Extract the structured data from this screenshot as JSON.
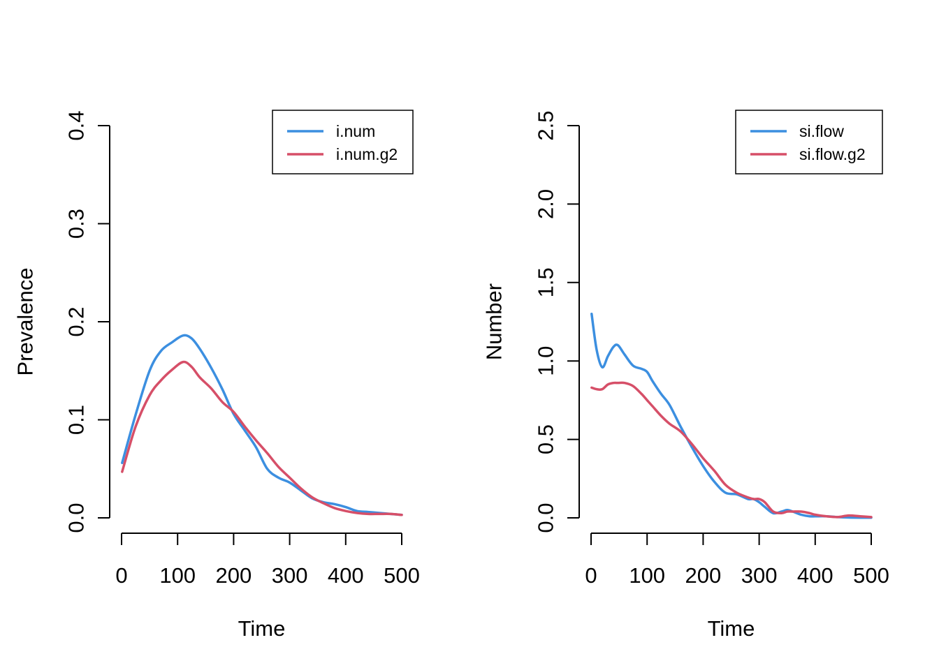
{
  "colors": {
    "blue": "#3C8FE0",
    "red": "#D64F68",
    "axis": "#000000",
    "background": "#FFFFFF"
  },
  "chart_data": [
    {
      "type": "line",
      "xlabel": "Time",
      "ylabel": "Prevalence",
      "xlim": [
        0,
        500
      ],
      "ylim": [
        0,
        0.4
      ],
      "xticks": [
        0,
        100,
        200,
        300,
        400,
        500
      ],
      "xtick_labels": [
        "0",
        "100",
        "200",
        "300",
        "400",
        "500"
      ],
      "yticks": [
        0,
        0.1,
        0.2,
        0.3,
        0.4
      ],
      "ytick_labels": [
        "0.0",
        "0.1",
        "0.2",
        "0.3",
        "0.4"
      ],
      "grid": false,
      "legend": "top-right",
      "series": [
        {
          "name": "i.num",
          "color": "#3C8FE0",
          "x": [
            1,
            25,
            50,
            70,
            90,
            110,
            125,
            140,
            160,
            180,
            200,
            220,
            240,
            260,
            280,
            300,
            320,
            340,
            360,
            380,
            400,
            420,
            440,
            460,
            480,
            500
          ],
          "y": [
            0.056,
            0.105,
            0.15,
            0.17,
            0.179,
            0.186,
            0.183,
            0.172,
            0.153,
            0.131,
            0.106,
            0.089,
            0.072,
            0.05,
            0.041,
            0.036,
            0.028,
            0.02,
            0.016,
            0.014,
            0.011,
            0.007,
            0.006,
            0.005,
            0.004,
            0.003
          ]
        },
        {
          "name": "i.num.g2",
          "color": "#D64F68",
          "x": [
            1,
            25,
            50,
            70,
            90,
            110,
            125,
            140,
            160,
            180,
            200,
            220,
            240,
            260,
            280,
            300,
            320,
            340,
            360,
            380,
            400,
            420,
            440,
            460,
            480,
            500
          ],
          "y": [
            0.047,
            0.093,
            0.125,
            0.14,
            0.151,
            0.159,
            0.154,
            0.143,
            0.132,
            0.118,
            0.108,
            0.093,
            0.079,
            0.066,
            0.052,
            0.041,
            0.03,
            0.021,
            0.015,
            0.01,
            0.007,
            0.005,
            0.004,
            0.004,
            0.004,
            0.003
          ]
        }
      ]
    },
    {
      "type": "line",
      "xlabel": "Time",
      "ylabel": "Number",
      "xlim": [
        0,
        500
      ],
      "ylim": [
        0,
        2.5
      ],
      "xticks": [
        0,
        100,
        200,
        300,
        400,
        500
      ],
      "xtick_labels": [
        "0",
        "100",
        "200",
        "300",
        "400",
        "500"
      ],
      "yticks": [
        0,
        0.5,
        1.0,
        1.5,
        2.0,
        2.5
      ],
      "ytick_labels": [
        "0.0",
        "0.5",
        "1.0",
        "1.5",
        "2.0",
        "2.5"
      ],
      "grid": false,
      "legend": "top-right",
      "series": [
        {
          "name": "si.flow",
          "color": "#3C8FE0",
          "x": [
            1,
            10,
            20,
            30,
            40,
            48,
            60,
            75,
            90,
            100,
            110,
            125,
            140,
            160,
            180,
            200,
            220,
            240,
            260,
            280,
            290,
            300,
            310,
            325,
            340,
            350,
            360,
            375,
            390,
            400,
            420,
            440,
            460,
            480,
            500
          ],
          "y": [
            1.3,
            1.07,
            0.96,
            1.03,
            1.09,
            1.1,
            1.04,
            0.97,
            0.95,
            0.93,
            0.87,
            0.79,
            0.72,
            0.58,
            0.45,
            0.33,
            0.23,
            0.16,
            0.15,
            0.12,
            0.12,
            0.1,
            0.07,
            0.03,
            0.04,
            0.05,
            0.04,
            0.02,
            0.01,
            0.01,
            0.01,
            0.005,
            0.002,
            0.001,
            0.001
          ]
        },
        {
          "name": "si.flow.g2",
          "color": "#D64F68",
          "x": [
            1,
            10,
            20,
            30,
            40,
            48,
            60,
            75,
            90,
            100,
            110,
            125,
            140,
            160,
            180,
            200,
            220,
            240,
            260,
            280,
            290,
            300,
            310,
            325,
            340,
            350,
            360,
            375,
            390,
            400,
            420,
            440,
            460,
            480,
            500
          ],
          "y": [
            0.83,
            0.82,
            0.82,
            0.85,
            0.86,
            0.86,
            0.86,
            0.84,
            0.79,
            0.75,
            0.71,
            0.65,
            0.6,
            0.55,
            0.47,
            0.38,
            0.3,
            0.21,
            0.16,
            0.13,
            0.12,
            0.12,
            0.1,
            0.04,
            0.03,
            0.04,
            0.04,
            0.04,
            0.03,
            0.02,
            0.01,
            0.005,
            0.015,
            0.01,
            0.005
          ]
        }
      ]
    }
  ]
}
